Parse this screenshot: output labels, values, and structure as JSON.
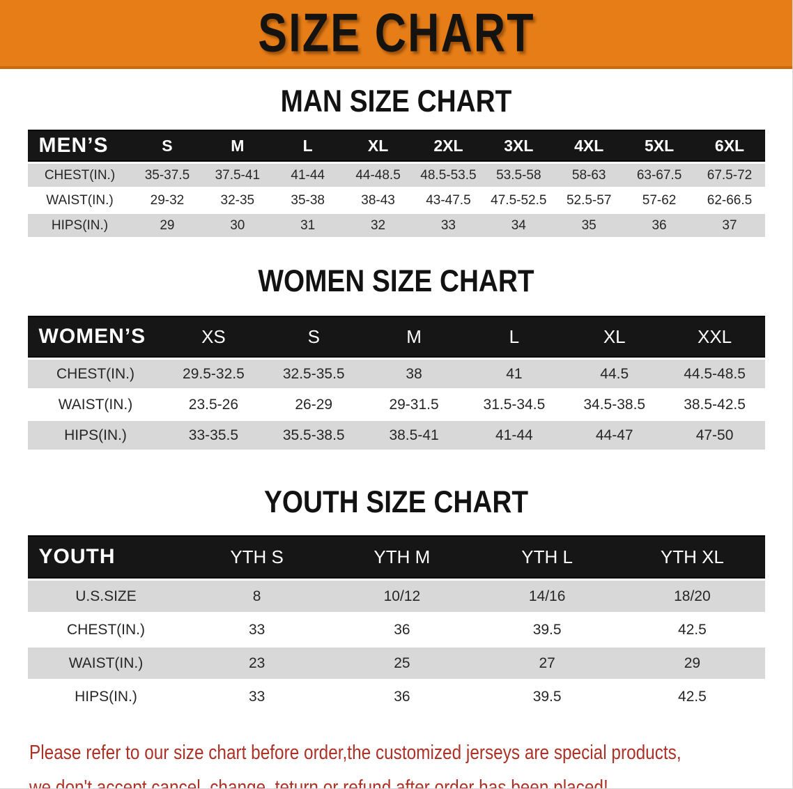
{
  "colors": {
    "banner_orange": "#E67D17",
    "banner_border": "#C9690E",
    "bar_black": "#161616",
    "row_gray": "#D8D8D8",
    "disclaimer_red": "#AC3126"
  },
  "banner": {
    "title": "SIZE CHART"
  },
  "sections": [
    {
      "heading": "MAN SIZE CHART",
      "table": {
        "header_label": "MEN’S",
        "columns": [
          "S",
          "M",
          "L",
          "XL",
          "2XL",
          "3XL",
          "4XL",
          "5XL",
          "6XL"
        ],
        "rows": [
          {
            "label": "CHEST(IN.)",
            "values": [
              "35-37.5",
              "37.5-41",
              "41-44",
              "44-48.5",
              "48.5-53.5",
              "53.5-58",
              "58-63",
              "63-67.5",
              "67.5-72"
            ]
          },
          {
            "label": "WAIST(IN.)",
            "values": [
              "29-32",
              "32-35",
              "35-38",
              "38-43",
              "43-47.5",
              "47.5-52.5",
              "52.5-57",
              "57-62",
              "62-66.5"
            ]
          },
          {
            "label": "HIPS(IN.)",
            "values": [
              "29",
              "30",
              "31",
              "32",
              "33",
              "34",
              "35",
              "36",
              "37"
            ]
          }
        ]
      }
    },
    {
      "heading": "WOMEN SIZE CHART",
      "table": {
        "header_label": "WOMEN’S",
        "columns": [
          "XS",
          "S",
          "M",
          "L",
          "XL",
          "XXL"
        ],
        "rows": [
          {
            "label": "CHEST(IN.)",
            "values": [
              "29.5-32.5",
              "32.5-35.5",
              "38",
              "41",
              "44.5",
              "44.5-48.5"
            ]
          },
          {
            "label": "WAIST(IN.)",
            "values": [
              "23.5-26",
              "26-29",
              "29-31.5",
              "31.5-34.5",
              "34.5-38.5",
              "38.5-42.5"
            ]
          },
          {
            "label": "HIPS(IN.)",
            "values": [
              "33-35.5",
              "35.5-38.5",
              "38.5-41",
              "41-44",
              "44-47",
              "47-50"
            ]
          }
        ]
      }
    },
    {
      "heading": "YOUTH SIZE CHART",
      "table": {
        "header_label": "YOUTH",
        "columns": [
          "YTH S",
          "YTH M",
          "YTH L",
          "YTH XL"
        ],
        "rows": [
          {
            "label": "U.S.SIZE",
            "values": [
              "8",
              "10/12",
              "14/16",
              "18/20"
            ]
          },
          {
            "label": "CHEST(IN.)",
            "values": [
              "33",
              "36",
              "39.5",
              "42.5"
            ]
          },
          {
            "label": "WAIST(IN.)",
            "values": [
              "23",
              "25",
              "27",
              "29"
            ]
          },
          {
            "label": "HIPS(IN.)",
            "values": [
              "33",
              "36",
              "39.5",
              "42.5"
            ]
          }
        ]
      }
    }
  ],
  "disclaimer": {
    "line1": "Please refer to our size chart before order,the customized jerseys are special products,",
    "line2": "we don't accept cancel, change, teturn or refund after order has been placed!"
  }
}
